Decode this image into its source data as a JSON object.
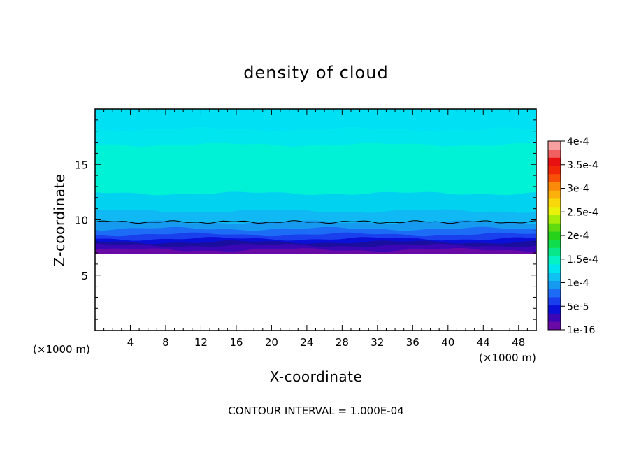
{
  "chart_data": {
    "type": "heatmap",
    "title": "density of cloud",
    "xlabel": "X-coordinate",
    "ylabel": "Z-coordinate",
    "x_unit_left": "(×1000 m)",
    "x_unit_right": "(×1000 m)",
    "xlim": [
      0,
      50
    ],
    "ylim": [
      0,
      20
    ],
    "x_ticks": [
      4,
      8,
      12,
      16,
      20,
      24,
      28,
      32,
      36,
      40,
      44,
      48
    ],
    "y_ticks": [
      5,
      10,
      15
    ],
    "footer": "CONTOUR INTERVAL = 1.000E-04",
    "colorbar": {
      "labels": [
        "1e-16",
        "5e-5",
        "1e-4",
        "1.5e-4",
        "2e-4",
        "2.5e-4",
        "3e-4",
        "3.5e-4",
        "4e-4"
      ],
      "colors": [
        "#6a0aa6",
        "#3b06b5",
        "#0a10d8",
        "#1a40ee",
        "#1c6cf5",
        "#159af0",
        "#0fc2f2",
        "#00e6ee",
        "#05f3c4",
        "#08e88a",
        "#10dd4c",
        "#26d21a",
        "#5fdb10",
        "#a8ec0a",
        "#e8f20a",
        "#f8d80a",
        "#fbb00c",
        "#fb8a0a",
        "#f85008",
        "#f02808",
        "#e81010",
        "#f06060",
        "#f8a0a0"
      ]
    },
    "bands": [
      {
        "z_from": 6.9,
        "z_to": 7.3,
        "color": "#6a0aa6"
      },
      {
        "z_from": 7.3,
        "z_to": 7.7,
        "color": "#3b06b5"
      },
      {
        "z_from": 7.7,
        "z_to": 8.0,
        "color": "#1a0e9e"
      },
      {
        "z_from": 8.0,
        "z_to": 8.3,
        "color": "#0a10d8"
      },
      {
        "z_from": 8.3,
        "z_to": 8.7,
        "color": "#1a40ee"
      },
      {
        "z_from": 8.7,
        "z_to": 9.2,
        "color": "#1c6cf5"
      },
      {
        "z_from": 9.2,
        "z_to": 9.8,
        "color": "#159af0"
      },
      {
        "z_from": 9.8,
        "z_to": 10.8,
        "color": "#10b8f4"
      },
      {
        "z_from": 10.8,
        "z_to": 12.4,
        "color": "#00d2f0"
      },
      {
        "z_from": 12.4,
        "z_to": 16.8,
        "color": "#00f2d6"
      },
      {
        "z_from": 16.8,
        "z_to": 18.2,
        "color": "#00e6ee"
      },
      {
        "z_from": 18.2,
        "z_to": 20.0,
        "color": "#00e0f4"
      }
    ],
    "contour_line": {
      "z": 9.8,
      "color": "#000000"
    }
  }
}
